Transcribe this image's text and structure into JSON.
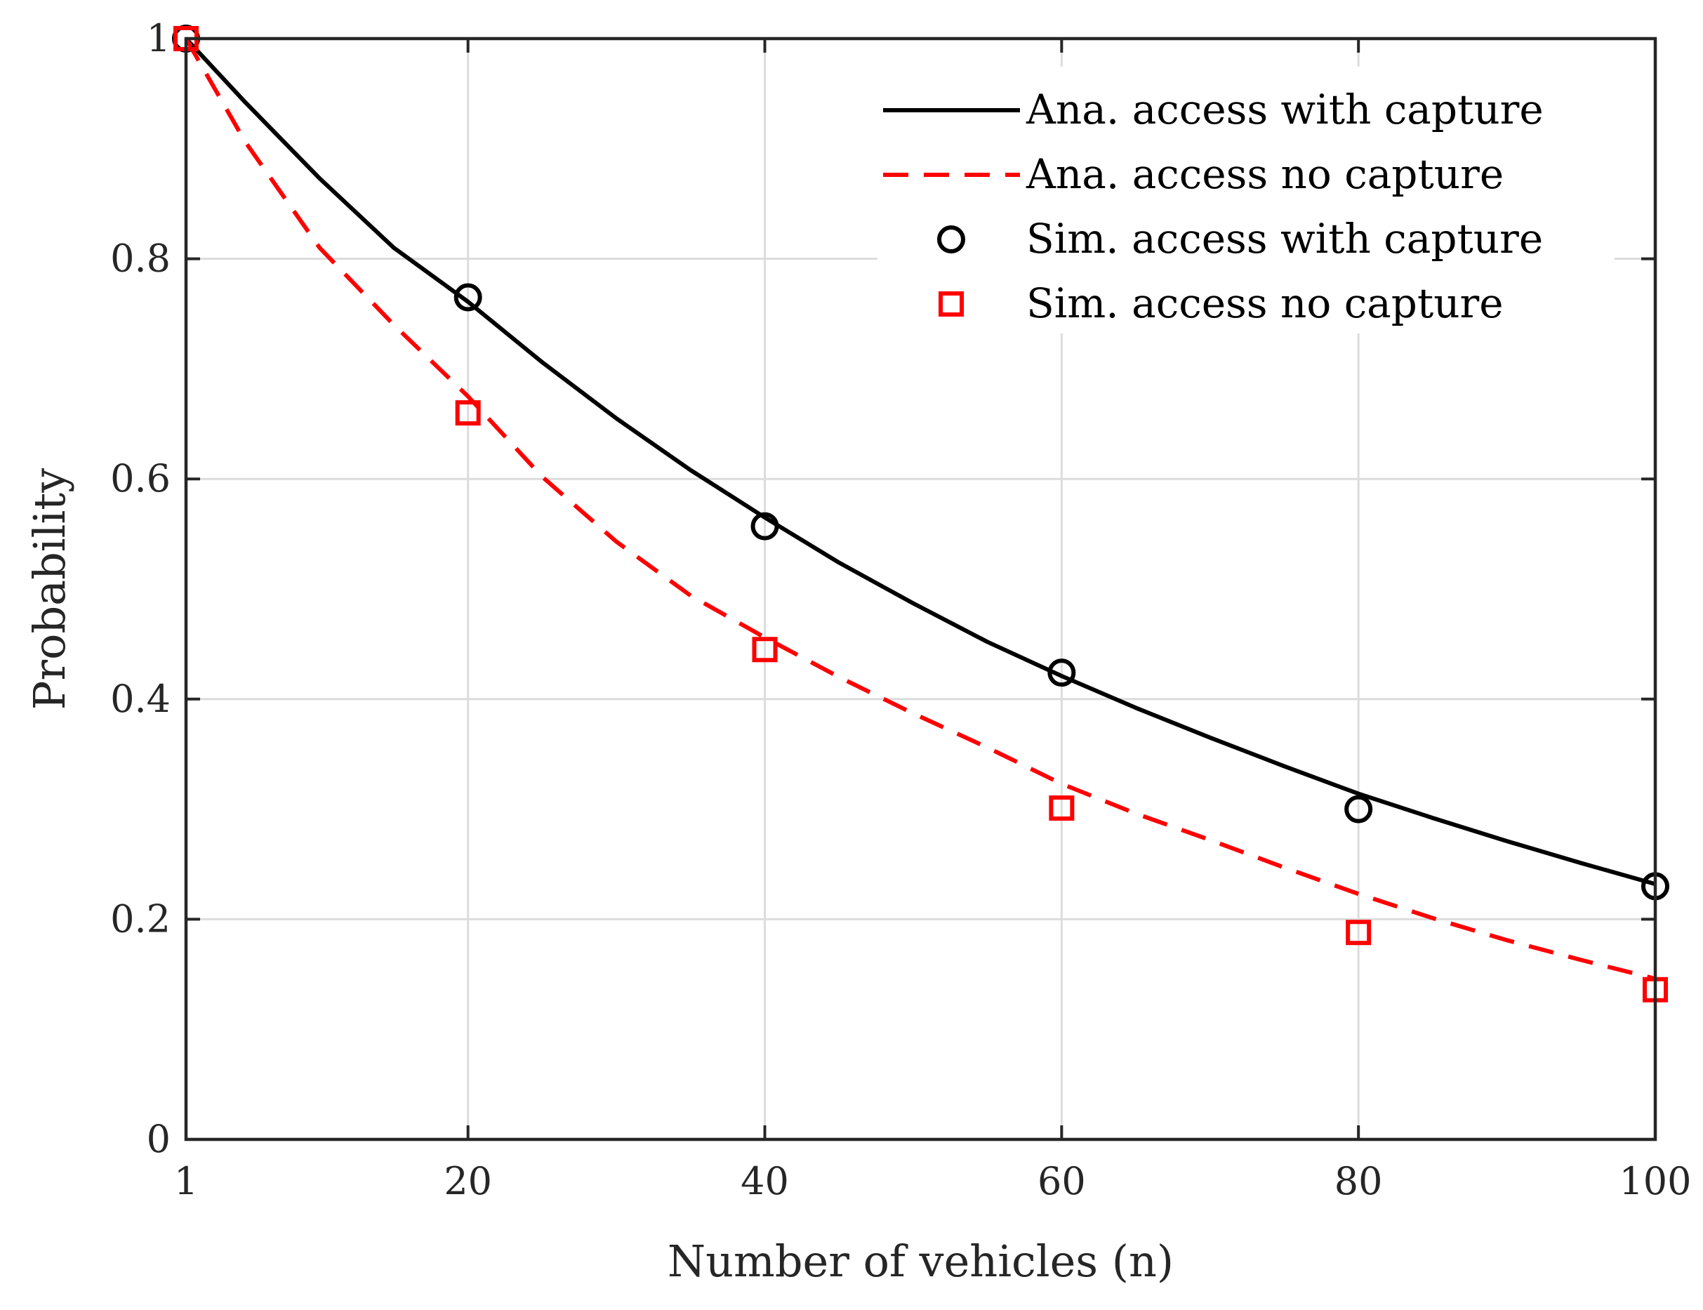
{
  "chart_data": {
    "type": "line",
    "title": "",
    "xlabel": "Number of vehicles (n)",
    "ylabel": "Probability",
    "xlim": [
      1,
      100
    ],
    "ylim": [
      0,
      1
    ],
    "xticks": [
      1,
      20,
      40,
      60,
      80,
      100
    ],
    "xtick_labels": [
      "1",
      "20",
      "40",
      "60",
      "80",
      "100"
    ],
    "yticks": [
      0,
      0.2,
      0.4,
      0.6,
      0.8,
      1
    ],
    "ytick_labels": [
      "0",
      "0.2",
      "0.4",
      "0.6",
      "0.8",
      "1"
    ],
    "grid": true,
    "legend_position": "top-right",
    "series": [
      {
        "name": "Ana. access with capture",
        "style": "solid-line",
        "color": "#000000",
        "x": [
          1,
          5,
          10,
          15,
          20,
          25,
          30,
          35,
          40,
          45,
          50,
          55,
          60,
          65,
          70,
          75,
          80,
          85,
          90,
          95,
          100
        ],
        "y": [
          1.0,
          0.942,
          0.873,
          0.81,
          0.761,
          0.706,
          0.655,
          0.608,
          0.565,
          0.524,
          0.487,
          0.452,
          0.421,
          0.392,
          0.365,
          0.339,
          0.314,
          0.292,
          0.271,
          0.251,
          0.232
        ]
      },
      {
        "name": "Ana. access no capture",
        "style": "dashed-line",
        "color": "#ff0000",
        "x": [
          1,
          5,
          10,
          15,
          20,
          25,
          30,
          35,
          40,
          45,
          50,
          55,
          60,
          65,
          70,
          75,
          80,
          85,
          90,
          95,
          100
        ],
        "y": [
          1.0,
          0.906,
          0.81,
          0.74,
          0.675,
          0.602,
          0.543,
          0.494,
          0.456,
          0.42,
          0.387,
          0.356,
          0.323,
          0.296,
          0.272,
          0.247,
          0.223,
          0.201,
          0.181,
          0.163,
          0.146
        ]
      },
      {
        "name": "Sim. access with capture",
        "style": "circle-marker",
        "color": "#000000",
        "x": [
          1,
          20,
          40,
          60,
          80,
          100
        ],
        "y": [
          1.0,
          0.765,
          0.557,
          0.424,
          0.3,
          0.23
        ]
      },
      {
        "name": "Sim. access no capture",
        "style": "square-marker",
        "color": "#ff0000",
        "x": [
          1,
          20,
          40,
          60,
          80,
          100
        ],
        "y": [
          1.0,
          0.66,
          0.445,
          0.301,
          0.188,
          0.136
        ]
      }
    ]
  }
}
